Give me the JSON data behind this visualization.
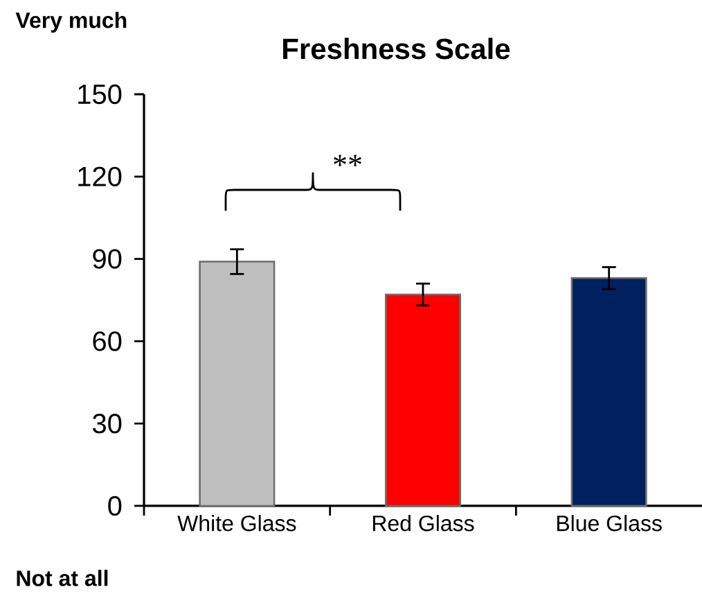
{
  "chart_data": {
    "type": "bar",
    "title": "Freshness Scale",
    "categories": [
      "White Glass",
      "Red Glass",
      "Blue Glass"
    ],
    "values": [
      89,
      77,
      83
    ],
    "errors": [
      4.5,
      4,
      4
    ],
    "colors": [
      "#bfbfbf",
      "#ff0000",
      "#002060"
    ],
    "ylim": [
      0,
      150
    ],
    "yticks": [
      0,
      30,
      60,
      90,
      120,
      150
    ],
    "annotations": [
      "Very much",
      "Not at all",
      "**"
    ]
  }
}
